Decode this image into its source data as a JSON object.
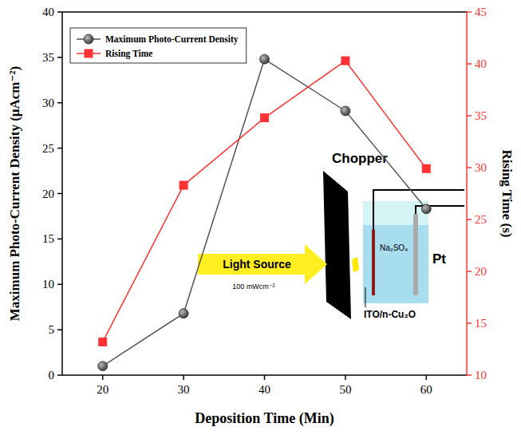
{
  "chart_data": {
    "type": "line",
    "x_label": "Deposition Time (Min)",
    "y_label": "Maximum Photo-Current Density (μAcm⁻²)",
    "y2_label": "Rising Time (s)",
    "x": [
      20,
      30,
      40,
      50,
      60
    ],
    "series": [
      {
        "name": "Maximum Photo-Current Density",
        "color": "#555555",
        "marker": "circle",
        "line_style": "solid",
        "values": [
          1.0,
          6.8,
          34.8,
          29.1,
          18.3
        ]
      },
      {
        "name": "Rising Time",
        "color": "#ff3333",
        "marker": "square",
        "line_style": "solid",
        "axis": "y2",
        "values": [
          13.2,
          28.3,
          34.8,
          40.3,
          29.9
        ]
      }
    ],
    "xlim": [
      15,
      65
    ],
    "xticks": [
      20,
      30,
      40,
      50,
      60
    ],
    "ylim": [
      0,
      40
    ],
    "yticks": [
      0,
      5,
      10,
      15,
      20,
      25,
      30,
      35,
      40
    ],
    "y2lim": [
      10,
      45
    ],
    "y2ticks": [
      10,
      15,
      20,
      25,
      30,
      35,
      40,
      45
    ],
    "grid": false,
    "legend": "upper left",
    "annotations": [
      "Chopper",
      "Light Source",
      "100 mWcm⁻²",
      "Na₂SO₄",
      "Pt",
      "ITO/n-Cu₂O"
    ]
  }
}
